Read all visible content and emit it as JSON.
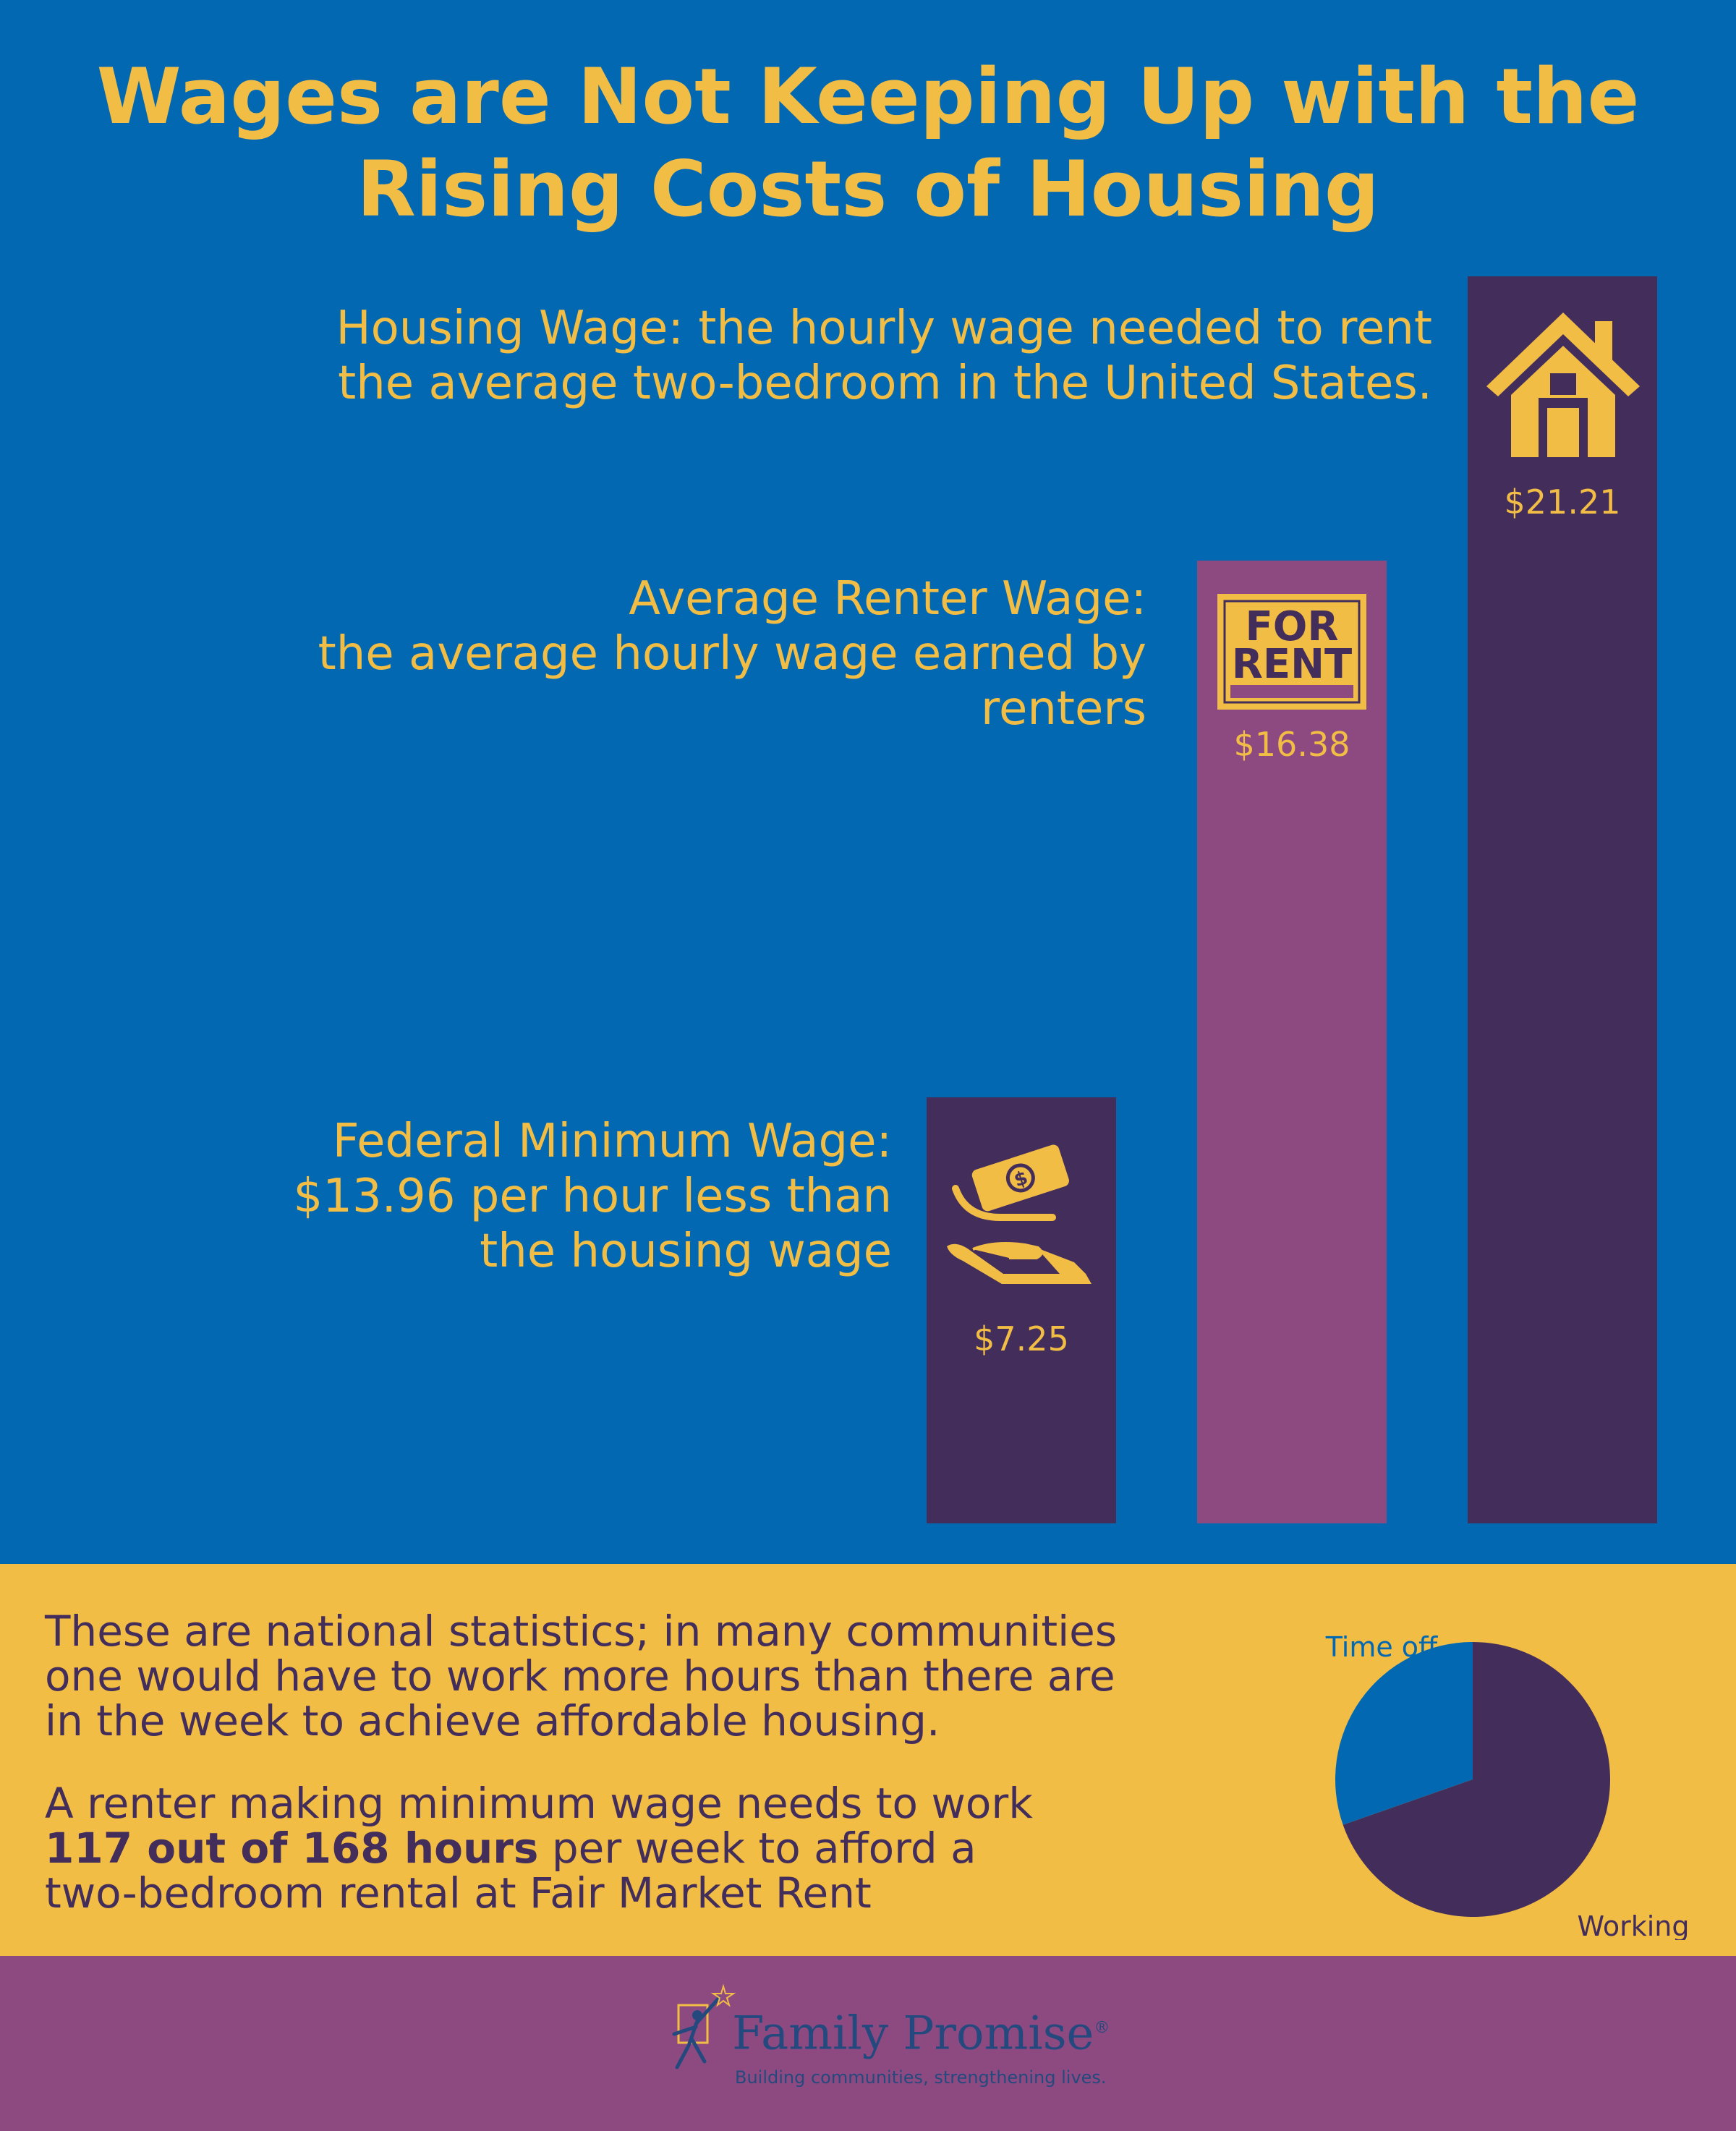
{
  "title": "Wages are Not Keeping Up with the Rising Costs of Housing",
  "labels": {
    "housing": [
      "Housing Wage:  the hourly wage needed to rent",
      "the average two-bedroom in the United States."
    ],
    "renter": [
      "Average Renter Wage:",
      "the average hourly wage earned by",
      "renters"
    ],
    "minimum": [
      "Federal Minimum Wage:",
      "$13.96 per hour less than",
      "the housing wage"
    ]
  },
  "colors": {
    "background": "#0368b2",
    "accent": "#f2bd45",
    "dark_purple": "#432d5a",
    "mauve": "#8d4a80",
    "blue": "#0368b2"
  },
  "chart_data": [
    {
      "type": "bar",
      "categories": [
        "Federal Minimum Wage",
        "Average Renter Wage",
        "Housing Wage"
      ],
      "values": [
        7.25,
        16.38,
        21.21
      ],
      "value_labels": [
        "$7.25",
        "$16.38",
        "$21.21"
      ],
      "bar_colors": [
        "#432d5a",
        "#8d4a80",
        "#432d5a"
      ],
      "icons": [
        "money-hand-icon",
        "for-rent-sign-icon",
        "house-icon"
      ],
      "ylim": [
        0,
        21.21
      ],
      "grid": false
    },
    {
      "type": "pie",
      "slices": [
        {
          "label": "Working",
          "value": 117,
          "color": "#432d5a"
        },
        {
          "label": "Time off",
          "value": 51,
          "color": "#0368b2"
        }
      ],
      "total": 168
    }
  ],
  "icons": {
    "for_rent_sign": [
      "FOR",
      "RENT"
    ]
  },
  "bottom": {
    "para1": [
      "These are national statistics; in many communities",
      "one would have to work more hours than there are",
      "in the week to achieve affordable housing."
    ],
    "para2_line1": "A renter making minimum wage needs to work",
    "para2_bold": "117 out of 168 hours",
    "para2_rest": " per week to afford a",
    "para2_line3": "two-bedroom rental at  Fair Market Rent"
  },
  "footer": {
    "logo_name": "Family Promise",
    "logo_mark": "®",
    "tagline": "Building communities, strengthening lives."
  }
}
